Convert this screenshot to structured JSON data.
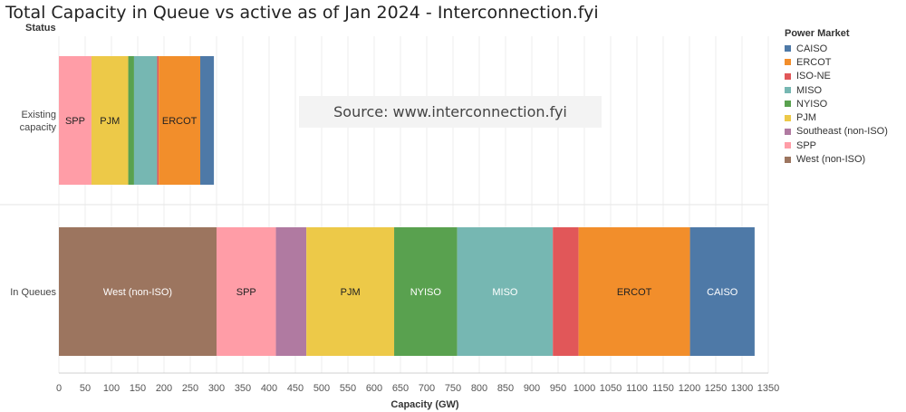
{
  "title": "Total Capacity in Queue vs active as of Jan 2024 - Interconnection.fyi",
  "status_label": "Status",
  "source_text": "Source: www.interconnection.fyi",
  "legend": {
    "title": "Power Market",
    "items": [
      {
        "label": "CAISO",
        "color": "#4e79a7"
      },
      {
        "label": "ERCOT",
        "color": "#f28e2b"
      },
      {
        "label": "ISO-NE",
        "color": "#e15759"
      },
      {
        "label": "MISO",
        "color": "#76b7b2"
      },
      {
        "label": "NYISO",
        "color": "#59a14f"
      },
      {
        "label": "PJM",
        "color": "#edc948"
      },
      {
        "label": "Southeast (non-ISO)",
        "color": "#b07aa1"
      },
      {
        "label": "SPP",
        "color": "#ff9da7"
      },
      {
        "label": "West (non-ISO)",
        "color": "#9c755f"
      }
    ]
  },
  "chart_data": {
    "type": "bar",
    "orientation": "horizontal",
    "stacked": true,
    "title": "Total Capacity in Queue vs active as of Jan 2024 - Interconnection.fyi",
    "xlabel": "Capacity (GW)",
    "ylabel": "Status",
    "xlim": [
      0,
      1350
    ],
    "x_ticks": [
      0,
      50,
      100,
      150,
      200,
      250,
      300,
      350,
      400,
      450,
      500,
      550,
      600,
      650,
      700,
      750,
      800,
      850,
      900,
      950,
      1000,
      1050,
      1100,
      1150,
      1200,
      1250,
      1300,
      1350
    ],
    "categories": [
      "Existing capacity",
      "In Queues"
    ],
    "series": [
      {
        "name": "SPP",
        "values": [
          62,
          113
        ],
        "color": "#ff9da7",
        "labels": [
          "SPP",
          "SPP"
        ]
      },
      {
        "name": "Southeast (non-ISO)",
        "values": [
          0,
          58
        ],
        "color": "#b07aa1",
        "labels": [
          "",
          ""
        ]
      },
      {
        "name": "West (non-ISO)",
        "values": [
          0,
          300
        ],
        "color": "#9c755f",
        "labels": [
          "",
          "West (non-ISO)"
        ]
      },
      {
        "name": "PJM",
        "values": [
          70,
          167
        ],
        "color": "#edc948",
        "labels": [
          "PJM",
          "PJM"
        ]
      },
      {
        "name": "NYISO",
        "values": [
          11,
          120
        ],
        "color": "#59a14f",
        "labels": [
          "",
          "NYISO"
        ]
      },
      {
        "name": "MISO",
        "values": [
          44,
          182
        ],
        "color": "#76b7b2",
        "labels": [
          "",
          "MISO"
        ]
      },
      {
        "name": "ISO-NE",
        "values": [
          3,
          49
        ],
        "color": "#e15759",
        "labels": [
          "",
          ""
        ]
      },
      {
        "name": "ERCOT",
        "values": [
          79,
          212
        ],
        "color": "#f28e2b",
        "labels": [
          "ERCOT",
          "ERCOT"
        ]
      },
      {
        "name": "CAISO",
        "values": [
          26,
          123
        ],
        "color": "#4e79a7",
        "labels": [
          "",
          "CAISO"
        ]
      }
    ],
    "stack_order": [
      [
        "SPP",
        "PJM",
        "NYISO",
        "MISO",
        "ISO-NE",
        "ERCOT",
        "CAISO"
      ],
      [
        "West (non-ISO)",
        "SPP",
        "Southeast (non-ISO)",
        "PJM",
        "NYISO",
        "MISO",
        "ISO-NE",
        "ERCOT",
        "CAISO"
      ]
    ],
    "grid": true,
    "legend_position": "right"
  }
}
